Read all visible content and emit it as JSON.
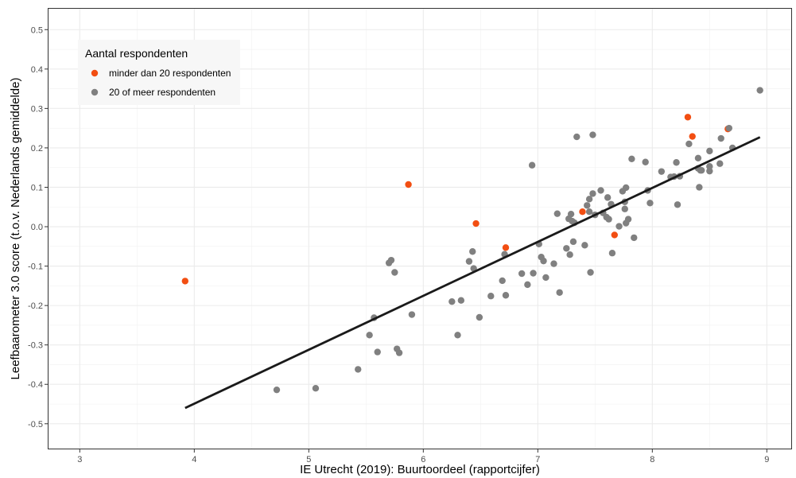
{
  "chart_data": {
    "type": "scatter",
    "xlabel": "IE Utrecht (2019): Buurtoordeel (rapportcijfer)",
    "ylabel": "Leefbaarometer 3.0 score (t.o.v. Nederlands gemiddelde)",
    "xlim": [
      2.72,
      9.22
    ],
    "ylim": [
      -0.565,
      0.555
    ],
    "x_ticks": [
      3,
      4,
      5,
      6,
      7,
      8,
      9
    ],
    "x_tick_labels": [
      "3",
      "4",
      "5",
      "6",
      "7",
      "8",
      "9"
    ],
    "y_ticks": [
      -0.5,
      -0.4,
      -0.3,
      -0.2,
      -0.1,
      0.0,
      0.1,
      0.2,
      0.3,
      0.4,
      0.5
    ],
    "y_tick_labels": [
      "-0.5",
      "-0.4",
      "-0.3",
      "-0.2",
      "-0.1",
      "0.0",
      "0.1",
      "0.2",
      "0.3",
      "0.4",
      "0.5"
    ],
    "grid": true,
    "legend": {
      "title": "Aantal respondenten",
      "position": "top-left"
    },
    "series": [
      {
        "name": "minder dan 20 respondenten",
        "color": "#F24E12",
        "points": [
          [
            3.92,
            -0.138
          ],
          [
            5.87,
            0.107
          ],
          [
            6.46,
            0.008
          ],
          [
            6.72,
            -0.053
          ],
          [
            7.39,
            0.038
          ],
          [
            7.67,
            -0.021
          ],
          [
            8.31,
            0.278
          ],
          [
            8.35,
            0.229
          ],
          [
            8.66,
            0.248
          ]
        ]
      },
      {
        "name": "20 of meer respondenten",
        "color": "#808080",
        "points": [
          [
            4.72,
            -0.414
          ],
          [
            5.06,
            -0.41
          ],
          [
            5.43,
            -0.362
          ],
          [
            5.53,
            -0.275
          ],
          [
            5.57,
            -0.231
          ],
          [
            5.6,
            -0.318
          ],
          [
            5.7,
            -0.092
          ],
          [
            5.72,
            -0.085
          ],
          [
            5.75,
            -0.116
          ],
          [
            5.77,
            -0.31
          ],
          [
            5.79,
            -0.32
          ],
          [
            5.9,
            -0.223
          ],
          [
            6.25,
            -0.19
          ],
          [
            6.3,
            -0.275
          ],
          [
            6.33,
            -0.187
          ],
          [
            6.4,
            -0.088
          ],
          [
            6.43,
            -0.063
          ],
          [
            6.44,
            -0.106
          ],
          [
            6.49,
            -0.23
          ],
          [
            6.59,
            -0.176
          ],
          [
            6.69,
            -0.137
          ],
          [
            6.71,
            -0.07
          ],
          [
            6.72,
            -0.174
          ],
          [
            6.86,
            -0.119
          ],
          [
            6.91,
            -0.147
          ],
          [
            6.95,
            0.156
          ],
          [
            6.96,
            -0.118
          ],
          [
            7.01,
            -0.044
          ],
          [
            7.03,
            -0.077
          ],
          [
            7.05,
            -0.087
          ],
          [
            7.07,
            -0.129
          ],
          [
            7.14,
            -0.094
          ],
          [
            7.17,
            0.033
          ],
          [
            7.19,
            -0.167
          ],
          [
            7.25,
            -0.055
          ],
          [
            7.27,
            0.02
          ],
          [
            7.28,
            -0.071
          ],
          [
            7.29,
            0.032
          ],
          [
            7.3,
            0.014
          ],
          [
            7.31,
            -0.038
          ],
          [
            7.32,
            0.01
          ],
          [
            7.34,
            0.228
          ],
          [
            7.41,
            -0.047
          ],
          [
            7.43,
            0.054
          ],
          [
            7.45,
            0.038
          ],
          [
            7.45,
            0.07
          ],
          [
            7.46,
            -0.116
          ],
          [
            7.48,
            0.233
          ],
          [
            7.48,
            0.084
          ],
          [
            7.5,
            0.03
          ],
          [
            7.55,
            0.092
          ],
          [
            7.57,
            0.035
          ],
          [
            7.6,
            0.024
          ],
          [
            7.61,
            0.074
          ],
          [
            7.62,
            0.019
          ],
          [
            7.64,
            0.057
          ],
          [
            7.65,
            -0.067
          ],
          [
            7.71,
            0.001
          ],
          [
            7.74,
            0.09
          ],
          [
            7.76,
            0.063
          ],
          [
            7.76,
            0.045
          ],
          [
            7.77,
            0.099
          ],
          [
            7.77,
            0.009
          ],
          [
            7.79,
            0.019
          ],
          [
            7.82,
            0.172
          ],
          [
            7.84,
            -0.028
          ],
          [
            7.94,
            0.164
          ],
          [
            7.96,
            0.092
          ],
          [
            7.98,
            0.06
          ],
          [
            8.08,
            0.14
          ],
          [
            8.16,
            0.126
          ],
          [
            8.19,
            0.127
          ],
          [
            8.21,
            0.163
          ],
          [
            8.22,
            0.056
          ],
          [
            8.24,
            0.128
          ],
          [
            8.32,
            0.21
          ],
          [
            8.4,
            0.174
          ],
          [
            8.4,
            0.148
          ],
          [
            8.41,
            0.1
          ],
          [
            8.42,
            0.143
          ],
          [
            8.43,
            0.143
          ],
          [
            8.5,
            0.141
          ],
          [
            8.5,
            0.192
          ],
          [
            8.5,
            0.153
          ],
          [
            8.59,
            0.16
          ],
          [
            8.6,
            0.224
          ],
          [
            8.67,
            0.25
          ],
          [
            8.7,
            0.2
          ],
          [
            8.94,
            0.346
          ]
        ]
      }
    ],
    "trendline": {
      "color": "#1a1a1a",
      "x": [
        3.92,
        8.94
      ],
      "y": [
        -0.46,
        0.227
      ]
    }
  }
}
